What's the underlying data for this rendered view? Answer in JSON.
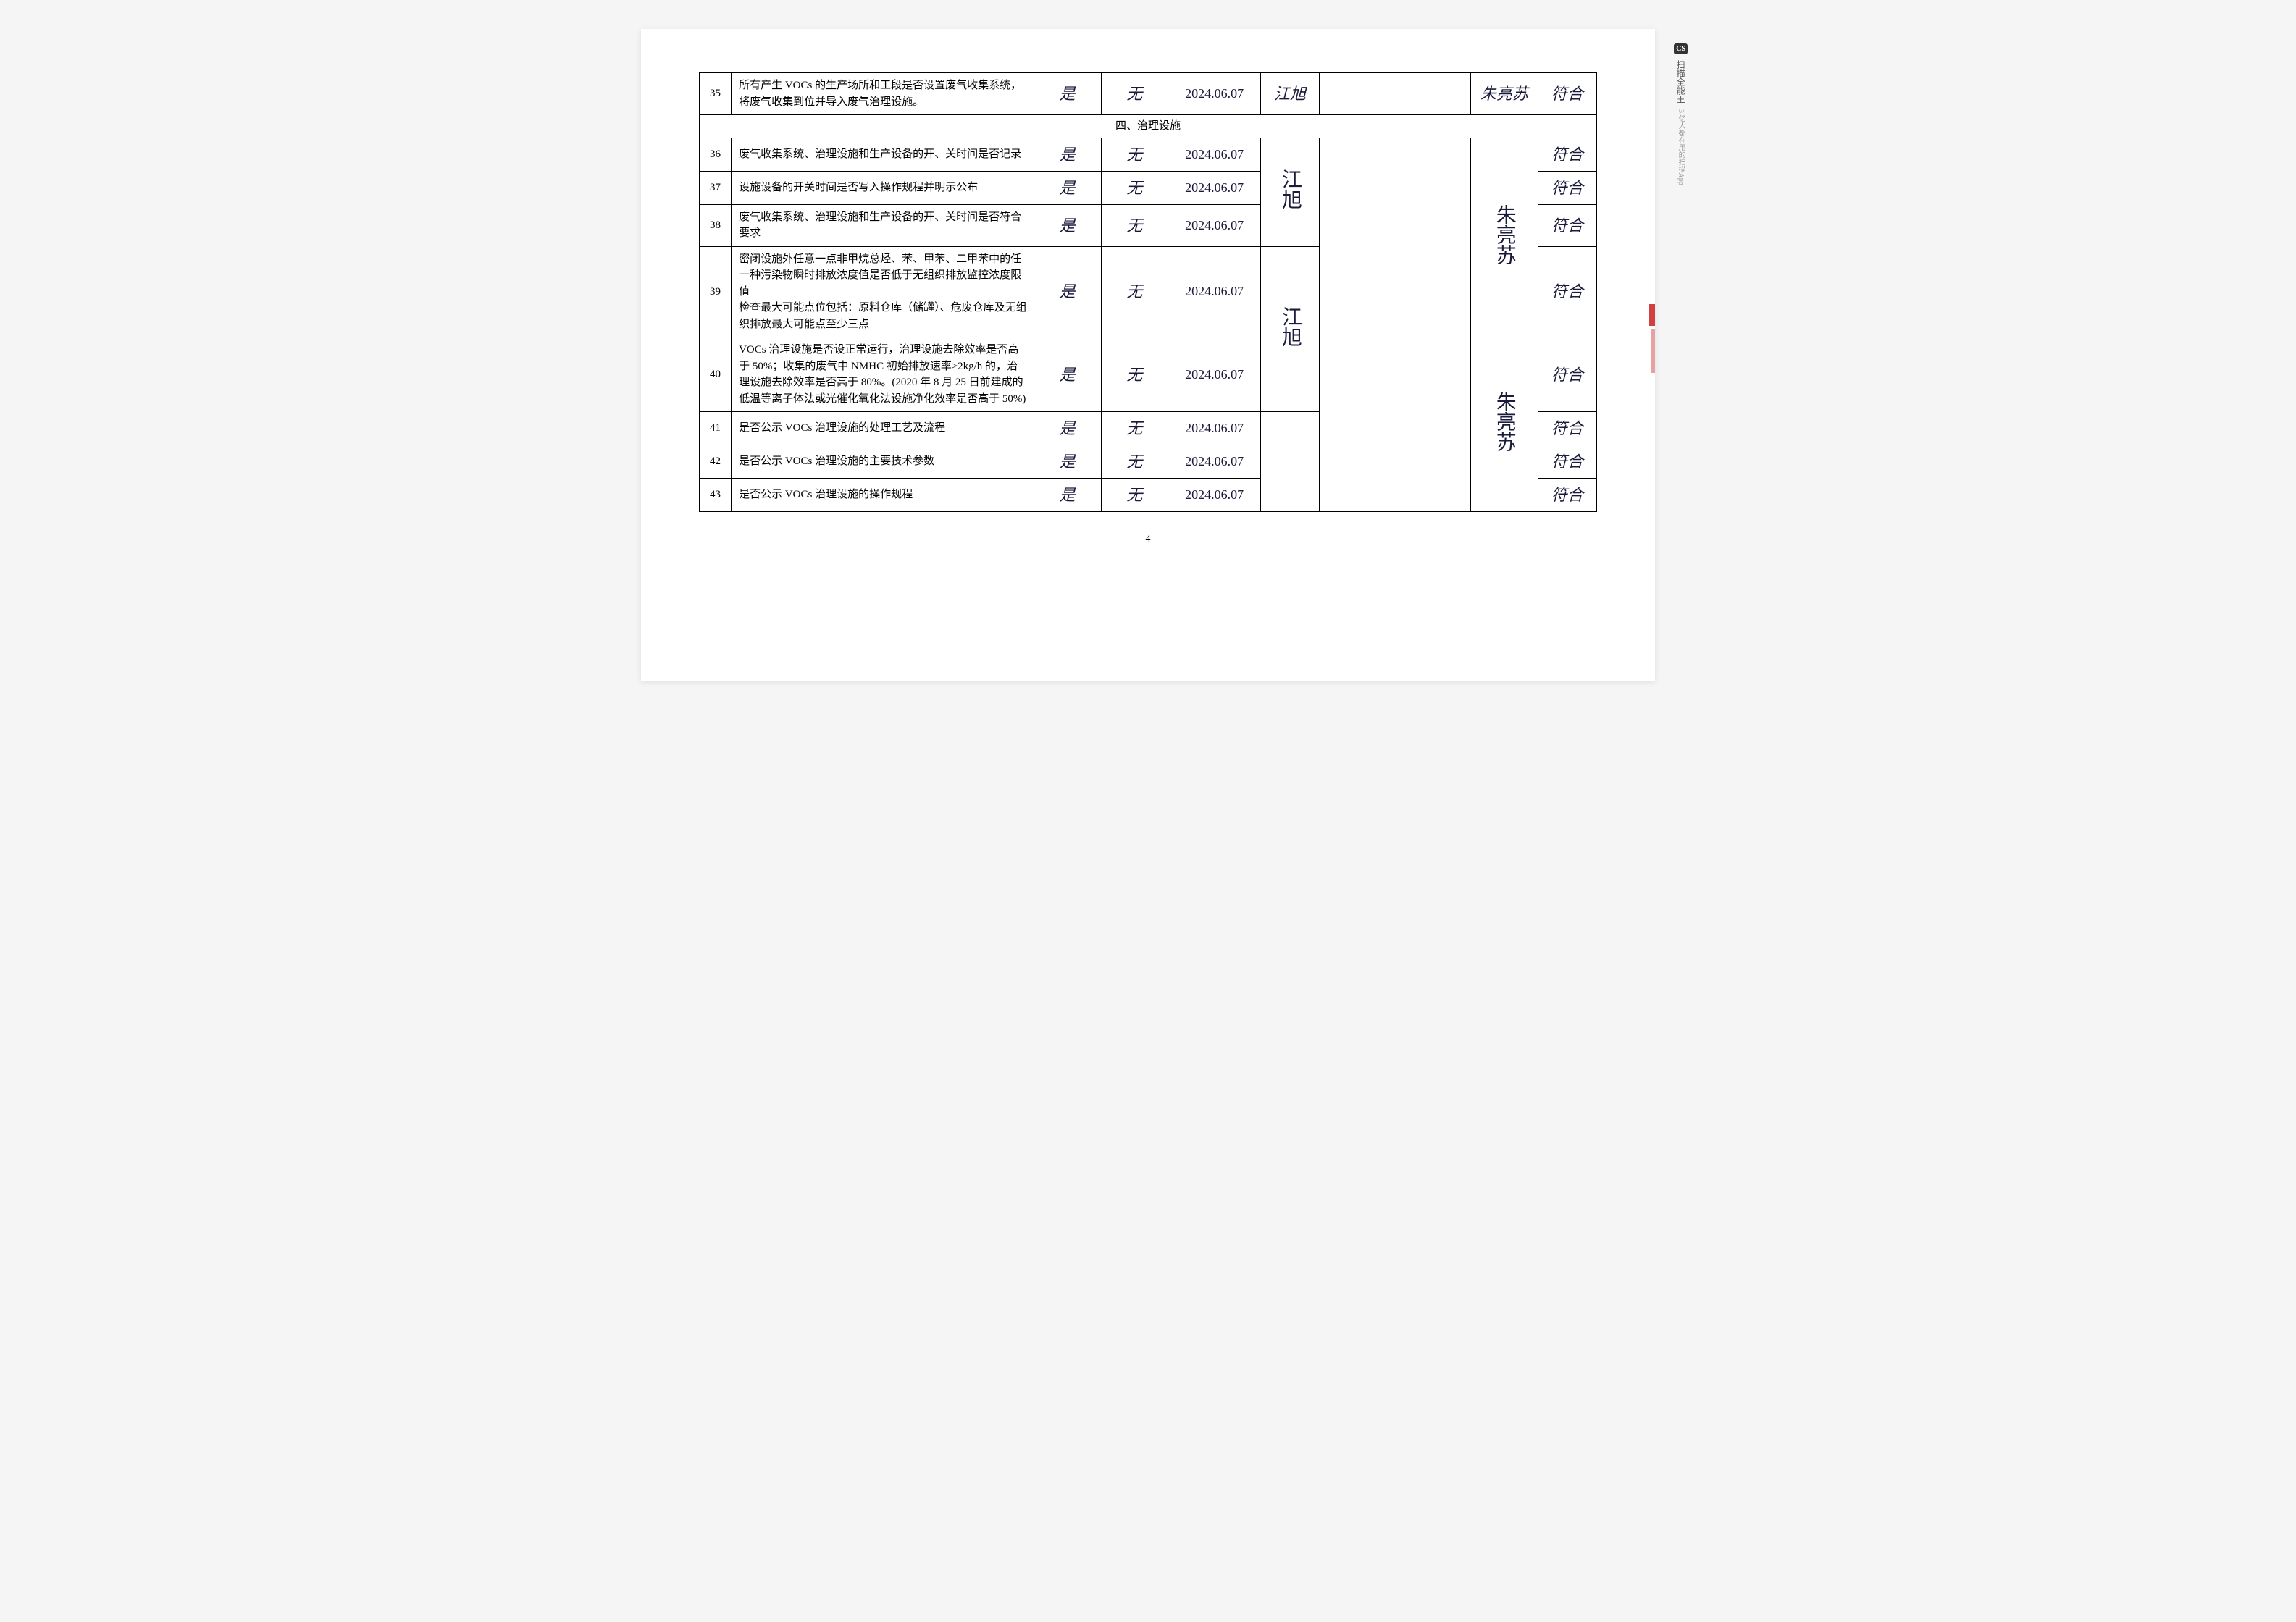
{
  "section_header": "四、治理设施",
  "page_number": "4",
  "watermark": {
    "logo": "CS",
    "text1": "扫描全能王",
    "text2": "3 亿人都在用的扫描App"
  },
  "handwritten_values": {
    "yes": "是",
    "none": "无",
    "date": "2024.06.07",
    "sign_jiang_xu": "江旭",
    "sign_zhu": "朱亮苏",
    "conform": "符合"
  },
  "rows": [
    {
      "num": "35",
      "desc": "所有产生 VOCs 的生产场所和工段是否设置废气收集系统，将废气收集到位并导入废气治理设施。"
    },
    {
      "num": "36",
      "desc": "废气收集系统、治理设施和生产设备的开、关时间是否记录"
    },
    {
      "num": "37",
      "desc": "设施设备的开关时间是否写入操作规程并明示公布"
    },
    {
      "num": "38",
      "desc": "废气收集系统、治理设施和生产设备的开、关时间是否符合要求"
    },
    {
      "num": "39",
      "desc": "密闭设施外任意一点非甲烷总烃、苯、甲苯、二甲苯中的任一种污染物瞬时排放浓度值是否低于无组织排放监控浓度限值\n检查最大可能点位包括：原料仓库（储罐）、危废仓库及无组织排放最大可能点至少三点"
    },
    {
      "num": "40",
      "desc": "VOCs 治理设施是否设正常运行，治理设施去除效率是否高于 50%；收集的废气中 NMHC 初始排放速率≥2kg/h 的，治理设施去除效率是否高于 80%。(2020 年 8 月 25 日前建成的低温等离子体法或光催化氧化法设施净化效率是否高于 50%)"
    },
    {
      "num": "41",
      "desc": "是否公示 VOCs 治理设施的处理工艺及流程"
    },
    {
      "num": "42",
      "desc": "是否公示 VOCs 治理设施的主要技术参数"
    },
    {
      "num": "43",
      "desc": "是否公示 VOCs 治理设施的操作规程"
    }
  ]
}
